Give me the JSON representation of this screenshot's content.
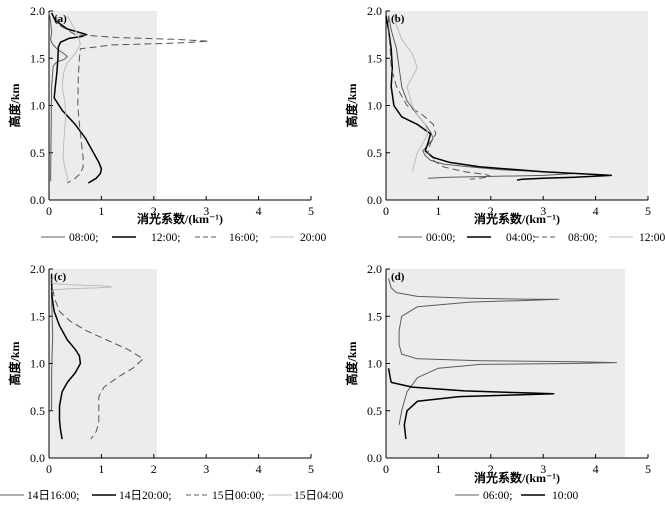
{
  "chart_data": [
    {
      "panel_label": "(a)",
      "type": "line",
      "xlabel": "消光系数/(km⁻¹)",
      "ylabel": "高度/km",
      "xlim": [
        0,
        5
      ],
      "ylim": [
        0,
        2
      ],
      "xticks": [
        "0",
        "1",
        "2",
        "3",
        "4",
        "5"
      ],
      "yticks": [
        "0.0",
        "0.5",
        "1.0",
        "1.5",
        "2.0"
      ],
      "grid": false,
      "legend_position": "bottom",
      "series": [
        {
          "name": "08:00;",
          "color": "#5c5c5c",
          "dash": "solid",
          "width": 1.0,
          "x": [
            0.0,
            0.02,
            0.03,
            0.04,
            0.05,
            0.05,
            0.04,
            0.03,
            0.05,
            0.08,
            0.12,
            0.15,
            0.2,
            0.28,
            0.35,
            0.3,
            0.15,
            0.08,
            0.05,
            0.04,
            0.03
          ],
          "y": [
            1.98,
            1.93,
            1.88,
            1.83,
            1.79,
            1.76,
            1.73,
            1.7,
            1.67,
            1.64,
            1.62,
            1.6,
            1.58,
            1.55,
            1.52,
            1.49,
            1.46,
            1.42,
            1.2,
            0.7,
            0.2
          ]
        },
        {
          "name": "12:00;",
          "color": "#000000",
          "dash": "solid",
          "width": 1.5,
          "x": [
            0.05,
            0.12,
            0.35,
            0.6,
            0.72,
            0.62,
            0.38,
            0.22,
            0.18,
            0.17,
            0.15,
            0.12,
            0.1,
            0.25,
            0.5,
            0.7,
            0.85,
            0.95,
            1.0,
            0.98,
            0.9,
            0.75
          ],
          "y": [
            1.98,
            1.9,
            1.81,
            1.77,
            1.75,
            1.73,
            1.71,
            1.67,
            1.62,
            1.5,
            1.35,
            1.2,
            1.08,
            0.95,
            0.8,
            0.65,
            0.5,
            0.4,
            0.33,
            0.28,
            0.23,
            0.18
          ]
        },
        {
          "name": "16:00;",
          "color": "#555555",
          "dash": "dashed",
          "width": 1.0,
          "x": [
            0.12,
            0.2,
            0.5,
            1.3,
            2.4,
            3.05,
            2.4,
            1.2,
            0.6,
            0.58,
            0.56,
            0.55,
            0.58,
            0.62,
            0.65,
            0.65,
            0.6,
            0.5,
            0.35
          ],
          "y": [
            1.95,
            1.85,
            1.75,
            1.72,
            1.7,
            1.68,
            1.66,
            1.64,
            1.6,
            1.5,
            1.3,
            1.0,
            0.8,
            0.6,
            0.45,
            0.35,
            0.28,
            0.23,
            0.18
          ]
        },
        {
          "name": "20:00",
          "color": "#bdbdbd",
          "dash": "solid",
          "width": 1.0,
          "x": [
            0.35,
            0.45,
            0.55,
            0.6,
            0.5,
            0.35,
            0.28,
            0.25,
            0.3,
            0.32,
            0.3,
            0.28,
            0.27,
            0.3,
            0.35,
            0.35
          ],
          "y": [
            1.95,
            1.85,
            1.75,
            1.65,
            1.55,
            1.45,
            1.35,
            1.2,
            1.05,
            0.9,
            0.75,
            0.6,
            0.45,
            0.35,
            0.25,
            0.2
          ]
        }
      ]
    },
    {
      "panel_label": "(b)",
      "type": "line",
      "xlabel": "消光系数/(km⁻¹)",
      "ylabel": "高度/km",
      "xlim": [
        0,
        5
      ],
      "ylim": [
        0,
        2
      ],
      "xticks": [
        "0",
        "1",
        "2",
        "3",
        "4",
        "5"
      ],
      "yticks": [
        "0.0",
        "0.5",
        "1.0",
        "1.5",
        "2.0"
      ],
      "grid": false,
      "legend_position": "bottom",
      "series": [
        {
          "name": "00:00;",
          "color": "#5c5c5c",
          "dash": "solid",
          "width": 1.0,
          "x": [
            0.05,
            0.1,
            0.2,
            0.25,
            0.3,
            0.4,
            0.6,
            0.75,
            0.85,
            0.9,
            0.8,
            0.7,
            0.75,
            0.85,
            1.1,
            1.6,
            2.2,
            3.0,
            3.6,
            3.0,
            2.0,
            1.2,
            0.8
          ],
          "y": [
            1.95,
            1.8,
            1.6,
            1.4,
            1.2,
            1.05,
            0.9,
            0.8,
            0.72,
            0.65,
            0.58,
            0.52,
            0.47,
            0.42,
            0.38,
            0.35,
            0.32,
            0.3,
            0.28,
            0.26,
            0.25,
            0.24,
            0.23
          ]
        },
        {
          "name": "04:00;",
          "color": "#000000",
          "dash": "solid",
          "width": 1.5,
          "x": [
            0.0,
            0.05,
            0.1,
            0.12,
            0.1,
            0.15,
            0.3,
            0.6,
            0.85,
            0.8,
            0.75,
            0.9,
            1.2,
            1.8,
            3.0,
            4.0,
            4.3,
            3.6,
            3.0,
            2.6,
            2.5
          ],
          "y": [
            1.95,
            1.8,
            1.6,
            1.4,
            1.2,
            1.0,
            0.88,
            0.8,
            0.7,
            0.6,
            0.52,
            0.45,
            0.4,
            0.35,
            0.3,
            0.27,
            0.26,
            0.24,
            0.23,
            0.22,
            0.21
          ]
        },
        {
          "name": "08:00;",
          "color": "#555555",
          "dash": "dashed",
          "width": 1.0,
          "x": [
            0.05,
            0.05,
            0.08,
            0.1,
            0.2,
            0.4,
            0.7,
            0.9,
            0.95,
            0.85,
            0.8,
            0.9,
            1.1,
            1.5,
            1.9,
            2.0,
            1.8,
            1.6
          ],
          "y": [
            1.95,
            1.8,
            1.6,
            1.4,
            1.2,
            1.0,
            0.9,
            0.8,
            0.7,
            0.6,
            0.5,
            0.42,
            0.35,
            0.3,
            0.27,
            0.25,
            0.23,
            0.22
          ]
        },
        {
          "name": "12:00",
          "color": "#bdbdbd",
          "dash": "solid",
          "width": 1.0,
          "x": [
            0.15,
            0.2,
            0.3,
            0.5,
            0.6,
            0.5,
            0.4,
            0.45,
            0.5,
            0.6,
            0.75,
            0.8,
            0.7,
            0.6,
            0.55,
            0.5
          ],
          "y": [
            1.95,
            1.85,
            1.7,
            1.55,
            1.4,
            1.3,
            1.2,
            1.1,
            1.0,
            0.9,
            0.8,
            0.7,
            0.6,
            0.5,
            0.4,
            0.3
          ]
        }
      ]
    },
    {
      "panel_label": "(c)",
      "type": "line",
      "xlabel": "",
      "ylabel": "高度/km",
      "xlim": [
        0,
        5
      ],
      "ylim": [
        0,
        2
      ],
      "xticks": [
        "0",
        "1",
        "2",
        "3",
        "4",
        "5"
      ],
      "yticks": [
        "0.0",
        "0.5",
        "1.0",
        "1.5",
        "2.0"
      ],
      "grid": false,
      "legend_position": "bottom",
      "series": [
        {
          "name": "14日16:00;",
          "color": "#5c5c5c",
          "dash": "solid",
          "width": 1.0,
          "x": [
            0.05,
            0.05,
            0.06,
            0.07,
            0.06,
            0.05,
            0.05,
            0.05
          ],
          "y": [
            1.95,
            1.7,
            1.5,
            1.3,
            1.1,
            0.9,
            0.7,
            0.5
          ]
        },
        {
          "name": "14日20:00;",
          "color": "#000000",
          "dash": "solid",
          "width": 1.5,
          "x": [
            0.05,
            0.05,
            0.06,
            0.1,
            0.2,
            0.35,
            0.5,
            0.58,
            0.6,
            0.5,
            0.35,
            0.25,
            0.2,
            0.2,
            0.22,
            0.25
          ],
          "y": [
            1.95,
            1.85,
            1.7,
            1.55,
            1.4,
            1.25,
            1.15,
            1.08,
            1.0,
            0.9,
            0.8,
            0.7,
            0.55,
            0.4,
            0.3,
            0.2
          ]
        },
        {
          "name": "15日00:00;",
          "color": "#555555",
          "dash": "dashed",
          "width": 1.0,
          "x": [
            0.05,
            0.1,
            0.2,
            0.4,
            0.7,
            1.1,
            1.5,
            1.8,
            1.6,
            1.3,
            1.05,
            0.95,
            0.95,
            0.95,
            0.9,
            0.8
          ],
          "y": [
            1.9,
            1.7,
            1.55,
            1.45,
            1.35,
            1.25,
            1.15,
            1.05,
            0.95,
            0.85,
            0.75,
            0.65,
            0.5,
            0.38,
            0.28,
            0.2
          ]
        },
        {
          "name": "15日04:00",
          "color": "#bdbdbd",
          "dash": "solid",
          "width": 1.0,
          "x": [
            0.05,
            0.2,
            0.6,
            1.1,
            1.2,
            0.9,
            0.4,
            0.1,
            0.05
          ],
          "y": [
            1.85,
            1.84,
            1.83,
            1.82,
            1.81,
            1.8,
            1.79,
            1.78,
            1.76
          ]
        }
      ]
    },
    {
      "panel_label": "(d)",
      "type": "line",
      "xlabel": "消光系数/(km⁻¹)",
      "ylabel": "高度/km",
      "xlim": [
        0,
        5
      ],
      "ylim": [
        0,
        2
      ],
      "xticks": [
        "0",
        "1",
        "2",
        "3",
        "4",
        "5"
      ],
      "yticks": [
        "0.0",
        "0.5",
        "1.0",
        "1.5",
        "2.0"
      ],
      "grid": false,
      "legend_position": "bottom",
      "series": [
        {
          "name": "06:00;",
          "color": "#5c5c5c",
          "dash": "solid",
          "width": 1.0,
          "x": [
            0.05,
            0.1,
            0.2,
            0.6,
            1.6,
            2.8,
            3.3,
            2.8,
            1.6,
            0.6,
            0.3,
            0.25,
            0.25,
            0.3,
            0.6,
            1.8,
            3.5,
            4.4,
            3.5,
            1.8,
            1.0,
            0.6,
            0.4,
            0.3,
            0.25
          ],
          "y": [
            1.9,
            1.8,
            1.75,
            1.71,
            1.69,
            1.68,
            1.68,
            1.67,
            1.65,
            1.6,
            1.5,
            1.35,
            1.2,
            1.1,
            1.05,
            1.03,
            1.02,
            1.01,
            1.0,
            0.99,
            0.95,
            0.85,
            0.7,
            0.5,
            0.35
          ]
        },
        {
          "name": "10:00",
          "color": "#000000",
          "dash": "solid",
          "width": 1.5,
          "x": [
            0.05,
            0.08,
            0.1,
            0.5,
            1.5,
            2.6,
            3.2,
            2.6,
            1.4,
            0.6,
            0.4,
            0.35,
            0.38
          ],
          "y": [
            0.95,
            0.85,
            0.8,
            0.75,
            0.71,
            0.69,
            0.68,
            0.67,
            0.65,
            0.6,
            0.5,
            0.35,
            0.2
          ]
        }
      ]
    }
  ]
}
